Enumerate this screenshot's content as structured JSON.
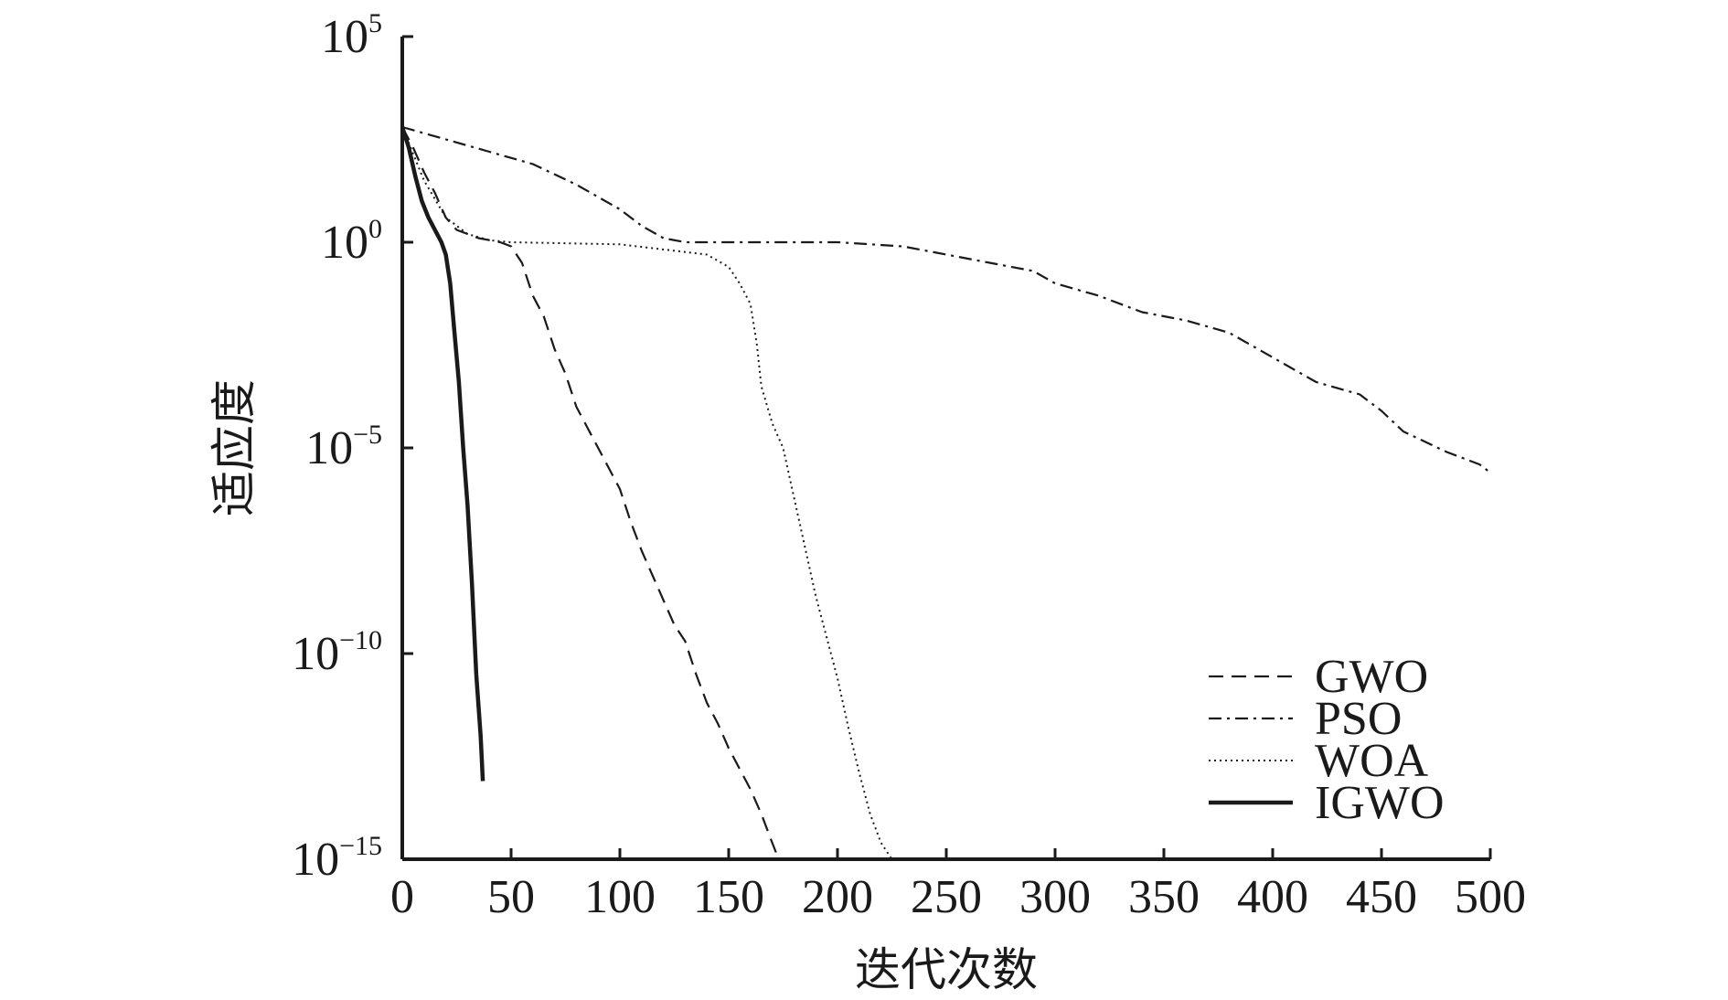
{
  "chart_data": {
    "type": "line",
    "xlabel": "迭代次数",
    "ylabel": "适应度",
    "xlim": [
      0,
      500
    ],
    "ylim_exponent": [
      -15,
      5
    ],
    "y_scale": "log",
    "x_ticks": [
      0,
      50,
      100,
      150,
      200,
      250,
      300,
      350,
      400,
      450,
      500
    ],
    "y_ticks": [
      {
        "base": "10",
        "exp": "5",
        "value": 5
      },
      {
        "base": "10",
        "exp": "0",
        "value": 0
      },
      {
        "base": "10",
        "exp": "−5",
        "value": -5
      },
      {
        "base": "10",
        "exp": "−10",
        "value": -10
      },
      {
        "base": "10",
        "exp": "−15",
        "value": -15
      }
    ],
    "legend_position": "bottom-right",
    "grid": false,
    "series": [
      {
        "name": "GWO",
        "style": "dashed",
        "width": 2.2,
        "points_log10": [
          [
            0,
            2.8
          ],
          [
            5,
            2.3
          ],
          [
            10,
            1.7
          ],
          [
            15,
            1.2
          ],
          [
            20,
            0.6
          ],
          [
            25,
            0.3
          ],
          [
            35,
            0.1
          ],
          [
            45,
            0
          ],
          [
            50,
            -0.1
          ],
          [
            55,
            -0.5
          ],
          [
            60,
            -1.3
          ],
          [
            65,
            -1.8
          ],
          [
            70,
            -2.6
          ],
          [
            75,
            -3.2
          ],
          [
            80,
            -4.0
          ],
          [
            85,
            -4.5
          ],
          [
            90,
            -5.0
          ],
          [
            95,
            -5.5
          ],
          [
            100,
            -6.0
          ],
          [
            105,
            -6.8
          ],
          [
            110,
            -7.5
          ],
          [
            115,
            -8.1
          ],
          [
            120,
            -8.7
          ],
          [
            125,
            -9.3
          ],
          [
            130,
            -9.7
          ],
          [
            135,
            -10.5
          ],
          [
            140,
            -11.2
          ],
          [
            145,
            -11.7
          ],
          [
            150,
            -12.3
          ],
          [
            155,
            -12.8
          ],
          [
            160,
            -13.3
          ],
          [
            165,
            -13.9
          ],
          [
            170,
            -14.6
          ],
          [
            173,
            -15
          ]
        ]
      },
      {
        "name": "PSO",
        "style": "dashdot",
        "width": 2.2,
        "points_log10": [
          [
            0,
            2.8
          ],
          [
            20,
            2.5
          ],
          [
            40,
            2.2
          ],
          [
            60,
            1.9
          ],
          [
            80,
            1.4
          ],
          [
            100,
            0.8
          ],
          [
            110,
            0.4
          ],
          [
            120,
            0.1
          ],
          [
            130,
            0
          ],
          [
            150,
            0
          ],
          [
            200,
            0
          ],
          [
            230,
            -0.1
          ],
          [
            250,
            -0.3
          ],
          [
            270,
            -0.5
          ],
          [
            290,
            -0.7
          ],
          [
            300,
            -1.0
          ],
          [
            320,
            -1.3
          ],
          [
            340,
            -1.7
          ],
          [
            360,
            -1.9
          ],
          [
            380,
            -2.2
          ],
          [
            390,
            -2.5
          ],
          [
            400,
            -2.8
          ],
          [
            420,
            -3.4
          ],
          [
            440,
            -3.7
          ],
          [
            450,
            -4.1
          ],
          [
            460,
            -4.6
          ],
          [
            480,
            -5.1
          ],
          [
            495,
            -5.4
          ],
          [
            500,
            -5.6
          ]
        ]
      },
      {
        "name": "WOA",
        "style": "dotted",
        "width": 2.0,
        "points_log10": [
          [
            0,
            2.8
          ],
          [
            10,
            1.5
          ],
          [
            20,
            0.6
          ],
          [
            30,
            0.2
          ],
          [
            40,
            0.05
          ],
          [
            50,
            0
          ],
          [
            100,
            -0.05
          ],
          [
            140,
            -0.3
          ],
          [
            150,
            -0.6
          ],
          [
            155,
            -1.0
          ],
          [
            160,
            -1.5
          ],
          [
            163,
            -2.5
          ],
          [
            165,
            -3.5
          ],
          [
            170,
            -4.4
          ],
          [
            175,
            -5.0
          ],
          [
            180,
            -6.2
          ],
          [
            185,
            -7.4
          ],
          [
            190,
            -8.6
          ],
          [
            195,
            -9.6
          ],
          [
            200,
            -10.6
          ],
          [
            205,
            -11.8
          ],
          [
            210,
            -12.9
          ],
          [
            215,
            -13.9
          ],
          [
            220,
            -14.6
          ],
          [
            225,
            -15
          ]
        ]
      },
      {
        "name": "IGWO",
        "style": "solid",
        "width": 4.5,
        "points_log10": [
          [
            0,
            2.8
          ],
          [
            3,
            2.3
          ],
          [
            6,
            1.6
          ],
          [
            9,
            1.0
          ],
          [
            12,
            0.6
          ],
          [
            15,
            0.3
          ],
          [
            18,
            0
          ],
          [
            20,
            -0.3
          ],
          [
            22,
            -1.0
          ],
          [
            24,
            -2.2
          ],
          [
            26,
            -3.4
          ],
          [
            28,
            -5.0
          ],
          [
            30,
            -6.4
          ],
          [
            32,
            -8.3
          ],
          [
            34,
            -10.5
          ],
          [
            36,
            -12.0
          ],
          [
            37,
            -13.1
          ]
        ]
      }
    ]
  }
}
